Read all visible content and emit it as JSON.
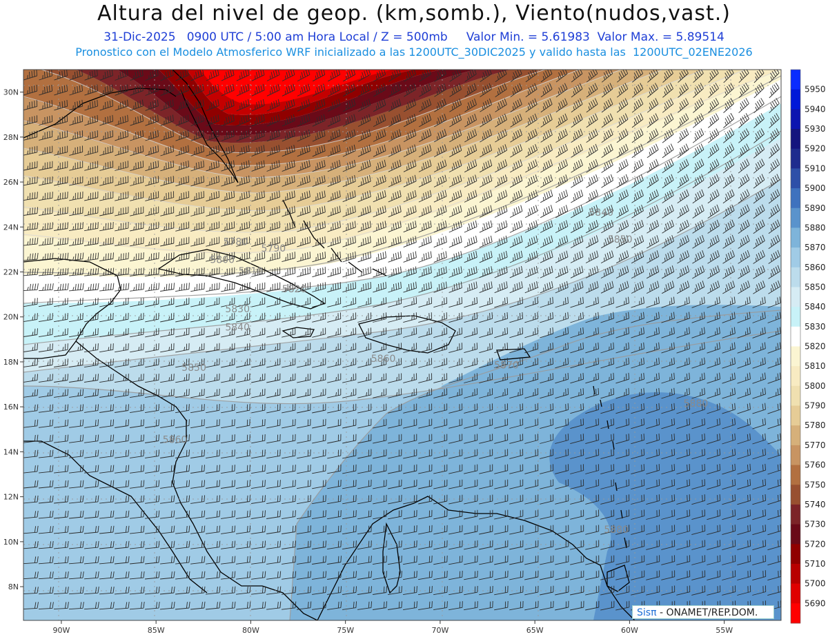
{
  "header": {
    "title": "Altura del nivel de geop. (km,somb.), Viento(nudos,vast.)",
    "subtitle_line1": "31-Dic-2025   0900 UTC / 5:00 am Hora Local / Z = 500mb     Valor Min. = 5.61983  Valor Max. = 5.89514",
    "subtitle_line2": "Pronostico con el Modelo Atmosferico WRF inicializado a las 1200UTC_30DIC2025 y valido hasta las  1200UTC_02ENE2026"
  },
  "credit": {
    "sis": "Sisπ",
    "org": " - ONAMET/REP.DOM."
  },
  "map": {
    "lon_range": [
      -92,
      -52
    ],
    "lat_range": [
      6.5,
      31
    ],
    "lon_ticks": [
      {
        "lon": -90,
        "label": "90W"
      },
      {
        "lon": -85,
        "label": "85W"
      },
      {
        "lon": -80,
        "label": "80W"
      },
      {
        "lon": -75,
        "label": "75W"
      },
      {
        "lon": -70,
        "label": "70W"
      },
      {
        "lon": -65,
        "label": "65W"
      },
      {
        "lon": -60,
        "label": "60W"
      },
      {
        "lon": -55,
        "label": "55W"
      }
    ],
    "lat_ticks": [
      {
        "lat": 30,
        "label": "30N"
      },
      {
        "lat": 28,
        "label": "28N"
      },
      {
        "lat": 26,
        "label": "26N"
      },
      {
        "lat": 24,
        "label": "24N"
      },
      {
        "lat": 22,
        "label": "22N"
      },
      {
        "lat": 20,
        "label": "20N"
      },
      {
        "lat": 18,
        "label": "18N"
      },
      {
        "lat": 16,
        "label": "16N"
      },
      {
        "lat": 14,
        "label": "14N"
      },
      {
        "lat": 12,
        "label": "12N"
      },
      {
        "lat": 10,
        "label": "10N"
      },
      {
        "lat": 8,
        "label": "8N"
      }
    ],
    "contour_labels": [
      {
        "text": "5780",
        "lon": -80.8,
        "lat": 23.2
      },
      {
        "text": "5790",
        "lon": -78.8,
        "lat": 22.9
      },
      {
        "text": "5800",
        "lon": -81.5,
        "lat": 22.4
      },
      {
        "text": "5810",
        "lon": -80.0,
        "lat": 21.9
      },
      {
        "text": "5820",
        "lon": -77.7,
        "lat": 21.1
      },
      {
        "text": "5830",
        "lon": -80.7,
        "lat": 20.2
      },
      {
        "text": "5840",
        "lon": -80.7,
        "lat": 19.4
      },
      {
        "text": "5840",
        "lon": -61.5,
        "lat": 24.5
      },
      {
        "text": "5850",
        "lon": -60.5,
        "lat": 23.3
      },
      {
        "text": "5850",
        "lon": -83.0,
        "lat": 17.6
      },
      {
        "text": "5860",
        "lon": -73.0,
        "lat": 18.0
      },
      {
        "text": "5870",
        "lon": -66.5,
        "lat": 17.7
      },
      {
        "text": "5860",
        "lon": -84.0,
        "lat": 14.4
      },
      {
        "text": "5880",
        "lon": -56.5,
        "lat": 16.0
      },
      {
        "text": "5880",
        "lon": -60.7,
        "lat": 10.4
      }
    ]
  },
  "colorbar": {
    "levels": [
      {
        "label": "5950",
        "color": "#0a2cff"
      },
      {
        "label": "5940",
        "color": "#0018d8"
      },
      {
        "label": "5930",
        "color": "#0c14b0"
      },
      {
        "label": "5920",
        "color": "#14147e"
      },
      {
        "label": "5910",
        "color": "#1e2c8e"
      },
      {
        "label": "5900",
        "color": "#2e50a8"
      },
      {
        "label": "5890",
        "color": "#3f72be"
      },
      {
        "label": "5880",
        "color": "#5a93cc"
      },
      {
        "label": "5870",
        "color": "#7eb4da"
      },
      {
        "label": "5860",
        "color": "#a0cbe6"
      },
      {
        "label": "5850",
        "color": "#bcdcec"
      },
      {
        "label": "5840",
        "color": "#d6ecf4"
      },
      {
        "label": "5830",
        "color": "#c8f2f8"
      },
      {
        "label": "5820",
        "color": "#ffffff"
      },
      {
        "label": "5810",
        "color": "#fbf5d2"
      },
      {
        "label": "5800",
        "color": "#f8ebc2"
      },
      {
        "label": "5790",
        "color": "#f0e0b0"
      },
      {
        "label": "5780",
        "color": "#e6cc96"
      },
      {
        "label": "5770",
        "color": "#d6b07a"
      },
      {
        "label": "5760",
        "color": "#c89462"
      },
      {
        "label": "5750",
        "color": "#b27040"
      },
      {
        "label": "5740",
        "color": "#985030"
      },
      {
        "label": "5730",
        "color": "#7c2428"
      },
      {
        "label": "5720",
        "color": "#6a0a18"
      },
      {
        "label": "5710",
        "color": "#900000"
      },
      {
        "label": "5700",
        "color": "#b80000"
      },
      {
        "label": "5690",
        "color": "#e00000"
      },
      {
        "label": "",
        "color": "#ff0000"
      }
    ]
  }
}
